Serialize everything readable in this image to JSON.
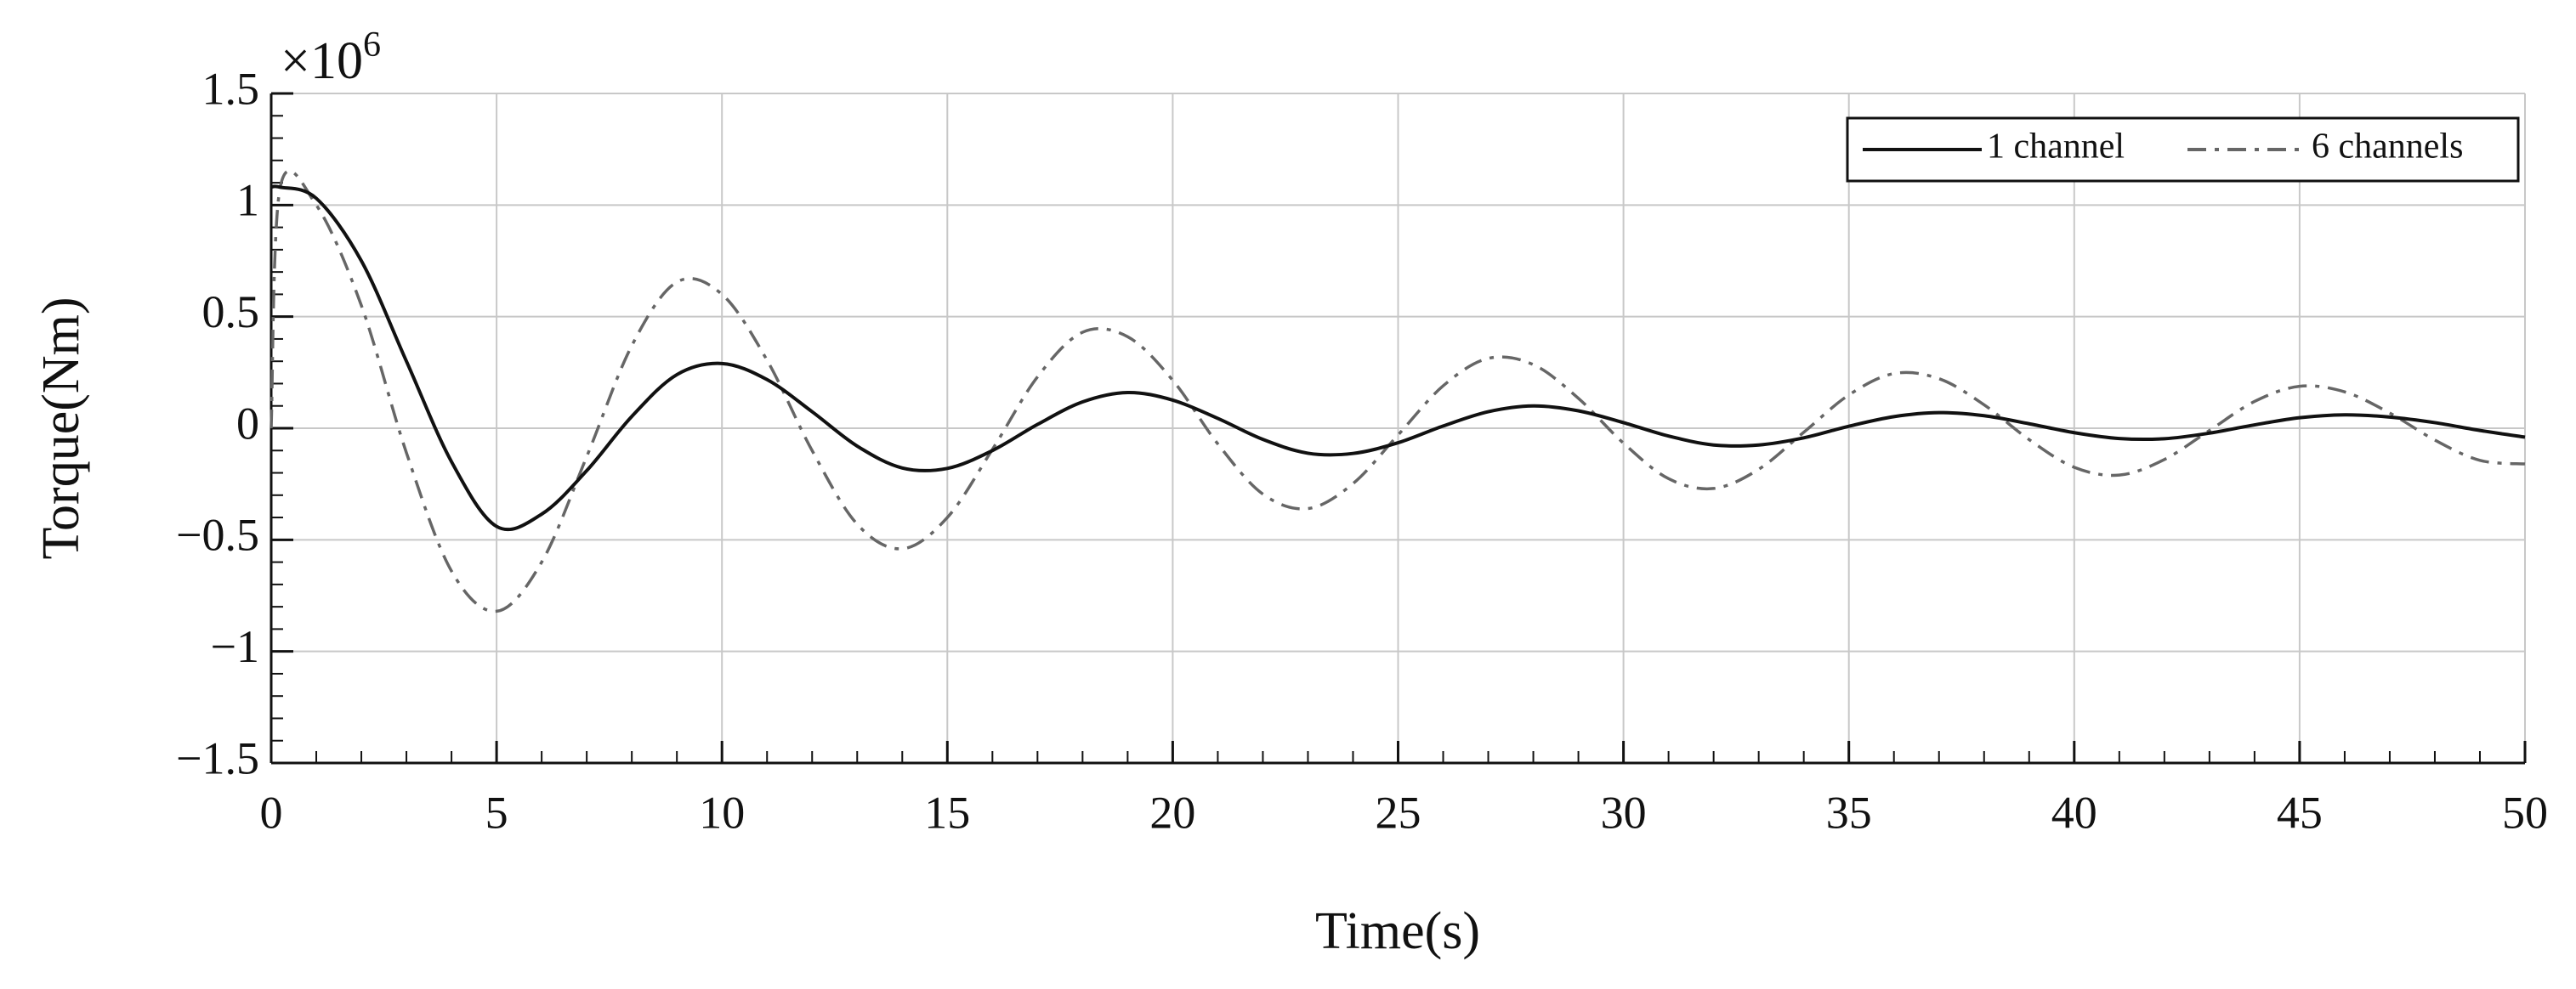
{
  "chart_data": {
    "type": "line",
    "multiplier": {
      "base": "×10",
      "exponent": "6"
    },
    "xlabel": "Time(s)",
    "ylabel": "Torque(Nm)",
    "x": [
      0,
      0.2,
      1,
      2,
      3,
      4,
      5,
      6,
      7,
      8,
      9,
      10,
      11,
      12,
      13,
      14,
      15,
      16,
      17,
      18,
      19,
      20,
      21,
      22,
      23,
      24,
      25,
      26,
      27,
      28,
      29,
      30,
      31,
      32,
      33,
      34,
      35,
      36,
      37,
      38,
      39,
      40,
      41,
      42,
      43,
      44,
      45,
      46,
      47,
      48,
      49,
      50
    ],
    "series": [
      {
        "name": "1 channel",
        "color": "#111111",
        "dash": "solid",
        "values": [
          1.08,
          1.08,
          1.03,
          0.75,
          0.3,
          -0.15,
          -0.44,
          -0.385,
          -0.19,
          0.053,
          0.24,
          0.29,
          0.218,
          0.074,
          -0.08,
          -0.178,
          -0.18,
          -0.1,
          0.017,
          0.118,
          0.16,
          0.126,
          0.044,
          -0.05,
          -0.112,
          -0.113,
          -0.065,
          0.01,
          0.074,
          0.1,
          0.078,
          0.025,
          -0.035,
          -0.075,
          -0.075,
          -0.043,
          0.009,
          0.052,
          0.07,
          0.056,
          0.02,
          -0.02,
          -0.046,
          -0.047,
          -0.022,
          0.015,
          0.047,
          0.06,
          0.05,
          0.025,
          -0.01,
          -0.04
        ]
      },
      {
        "name": "6 channels",
        "color": "#666666",
        "dash": "dashdot",
        "values": [
          0,
          1.08,
          1.0,
          0.55,
          -0.11,
          -0.64,
          -0.82,
          -0.6,
          -0.127,
          0.37,
          0.655,
          0.6,
          0.305,
          -0.1,
          -0.43,
          -0.54,
          -0.4,
          -0.095,
          0.23,
          0.43,
          0.41,
          0.215,
          -0.07,
          -0.295,
          -0.36,
          -0.248,
          -0.03,
          0.19,
          0.313,
          0.285,
          0.134,
          -0.067,
          -0.226,
          -0.27,
          -0.184,
          -0.018,
          0.149,
          0.245,
          0.222,
          0.105,
          -0.051,
          -0.175,
          -0.21,
          -0.14,
          -0.01,
          0.12,
          0.188,
          0.163,
          0.068,
          -0.053,
          -0.144,
          -0.16
        ]
      }
    ],
    "xlim": [
      0,
      50
    ],
    "xticks": [
      0,
      5,
      10,
      15,
      20,
      25,
      30,
      35,
      40,
      45,
      50
    ],
    "ylim": [
      -1.5,
      1.5
    ],
    "yticks": [
      {
        "value": -1.5,
        "label": "−1.5"
      },
      {
        "value": -1,
        "label": "−1"
      },
      {
        "value": -0.5,
        "label": "−0.5"
      },
      0,
      0.5,
      1,
      1.5
    ],
    "grid": true,
    "legend": "upper right"
  }
}
